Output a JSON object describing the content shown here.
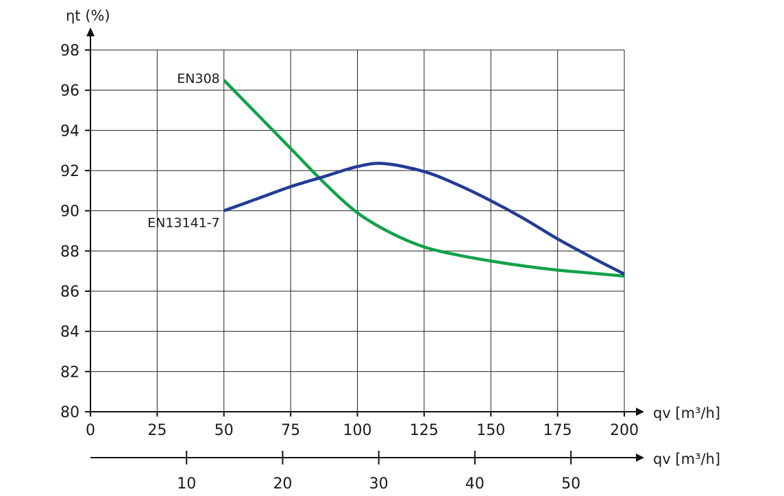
{
  "chart_data": {
    "type": "line",
    "title": "",
    "ylabel": "ηt (%)",
    "xlabel": "qv [m³/h]",
    "xlabel_secondary": "qv [m³/h]",
    "xlim": [
      0,
      200
    ],
    "ylim": [
      80,
      98
    ],
    "x_ticks": [
      0,
      25,
      50,
      75,
      100,
      125,
      150,
      175,
      200
    ],
    "y_ticks": [
      80,
      82,
      84,
      86,
      88,
      90,
      92,
      94,
      96,
      98
    ],
    "secondary_x_ticks": [
      10,
      20,
      30,
      40,
      50
    ],
    "secondary_x_scale": {
      "x_at_10": 36,
      "x_per_unit": 3.6
    },
    "grid": true,
    "series": [
      {
        "name": "EN308",
        "color": "#13a14a",
        "points": [
          [
            50,
            96.5
          ],
          [
            62.5,
            94.8
          ],
          [
            75,
            93.1
          ],
          [
            87.5,
            91.4
          ],
          [
            100,
            89.9
          ],
          [
            112.5,
            88.9
          ],
          [
            125,
            88.2
          ],
          [
            137.5,
            87.8
          ],
          [
            150,
            87.5
          ],
          [
            162.5,
            87.25
          ],
          [
            175,
            87.05
          ],
          [
            187.5,
            86.9
          ],
          [
            200,
            86.75
          ]
        ]
      },
      {
        "name": "EN13141-7",
        "color": "#233c94",
        "points": [
          [
            50,
            90.0
          ],
          [
            62.5,
            90.6
          ],
          [
            75,
            91.2
          ],
          [
            87.5,
            91.7
          ],
          [
            100,
            92.2
          ],
          [
            110,
            92.35
          ],
          [
            125,
            91.95
          ],
          [
            137.5,
            91.3
          ],
          [
            150,
            90.5
          ],
          [
            162.5,
            89.6
          ],
          [
            175,
            88.6
          ],
          [
            187.5,
            87.7
          ],
          [
            200,
            86.85
          ]
        ]
      }
    ]
  }
}
